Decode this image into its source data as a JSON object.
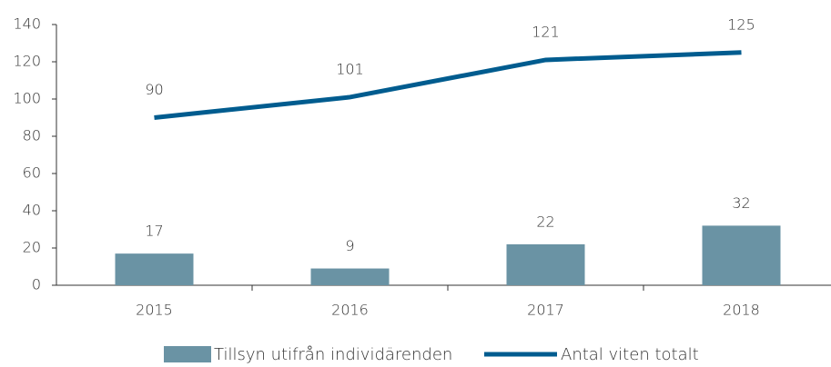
{
  "chart_data": {
    "type": "combo",
    "categories": [
      "2015",
      "2016",
      "2017",
      "2018"
    ],
    "series": [
      {
        "name": "Tillsyn utifrån individärenden",
        "type": "bar",
        "color": "#6a93a4",
        "values": [
          17,
          9,
          22,
          32
        ]
      },
      {
        "name": "Antal viten totalt",
        "type": "line",
        "color": "#005c8f",
        "values": [
          90,
          101,
          121,
          125
        ]
      }
    ],
    "ylim": [
      0,
      140
    ],
    "yticks": [
      0,
      20,
      40,
      60,
      80,
      100,
      120,
      140
    ],
    "grid": false,
    "legend": "bottom"
  }
}
